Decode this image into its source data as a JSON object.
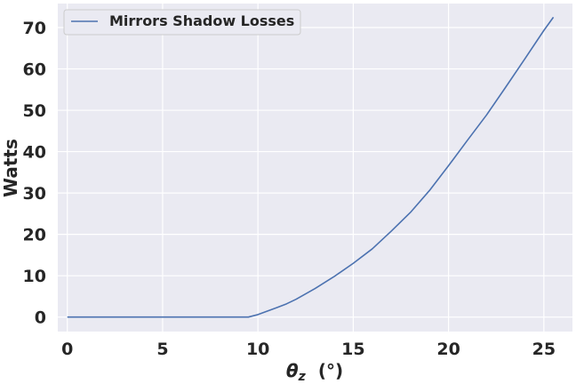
{
  "chart_data": {
    "type": "line",
    "xlabel_symbol": "θ",
    "xlabel_subscript": "z",
    "xlabel_unit": "(°)",
    "ylabel": "Watts",
    "xlim": [
      -0.5,
      26.5
    ],
    "ylim": [
      -3.5,
      75.8
    ],
    "xticks": [
      0,
      5,
      10,
      15,
      20,
      25
    ],
    "yticks": [
      0,
      10,
      20,
      30,
      40,
      50,
      60,
      70
    ],
    "grid": true,
    "legend_position": "top-left",
    "background": "#eaeaf2",
    "series": [
      {
        "name": "Mirrors Shadow Losses",
        "color": "#4c72b0",
        "x": [
          0,
          2,
          4,
          6,
          8,
          9.5,
          10,
          11,
          11.5,
          12,
          13,
          14,
          15,
          16,
          17,
          18,
          19,
          20,
          21,
          22,
          23,
          24,
          25,
          25.5
        ],
        "y": [
          0,
          0,
          0,
          0,
          0,
          0,
          0.6,
          2.3,
          3.2,
          4.3,
          6.9,
          9.8,
          13.0,
          16.5,
          20.8,
          25.3,
          30.6,
          36.6,
          42.8,
          48.9,
          55.6,
          62.4,
          69.3,
          72.5
        ]
      }
    ]
  }
}
